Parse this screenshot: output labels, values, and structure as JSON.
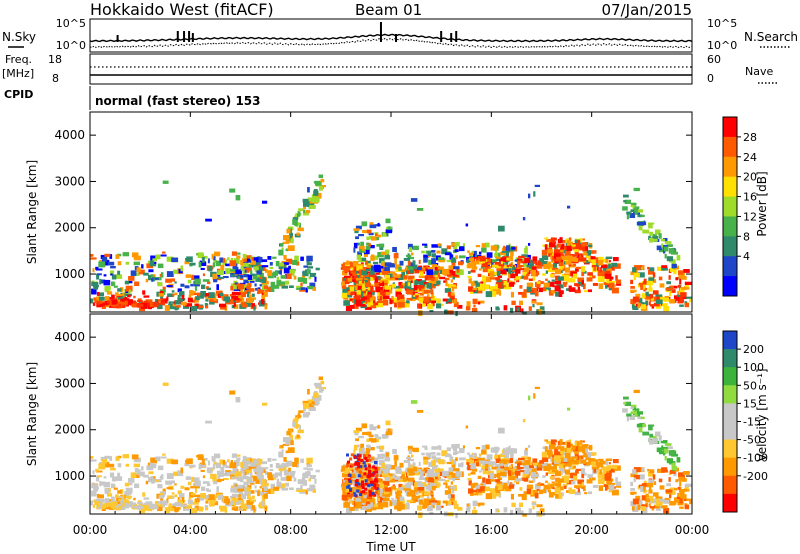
{
  "header": {
    "title": "Hokkaido West (fitACF)",
    "beam": "Beam 01",
    "date": "07/Jan/2015"
  },
  "noise_panel": {
    "left_label": "N.Sky",
    "right_label": "N.Search",
    "tick_top": "10^5",
    "tick_bottom": "10^0"
  },
  "freq_panel": {
    "left_label_1": "Freq.",
    "left_label_2": "[MHz]",
    "left_tick_top": "18",
    "left_tick_bottom": "8",
    "right_label": "Nave",
    "right_tick_top": "60",
    "right_tick_bottom": "0"
  },
  "cpid_panel": {
    "label": "CPID",
    "text": "normal (fast stereo) 153"
  },
  "colors": {
    "power_scale": [
      "#0000ff",
      "#1e46c8",
      "#2f8a6b",
      "#48b24a",
      "#9fdc2a",
      "#ffe000",
      "#ff9900",
      "#ff5a00",
      "#ff0000"
    ],
    "velocity_scale": [
      "#ff0000",
      "#ff5a00",
      "#ff9900",
      "#ffc830",
      "#c8c8c8",
      "#c8c8c8",
      "#90dc40",
      "#3cb43c",
      "#2f8a6b",
      "#1e46c8"
    ]
  },
  "chart_data": [
    {
      "type": "heatmap",
      "name": "power",
      "ylabel": "Slant Range [km]",
      "yticks": [
        "1000",
        "2000",
        "3000",
        "4000"
      ],
      "ylim": [
        180,
        4500
      ],
      "xlim": [
        0,
        24
      ],
      "colorbar_label": "Power [dB]",
      "colorbar_ticks": [
        "4",
        "8",
        "12",
        "16",
        "20",
        "24",
        "28"
      ],
      "colorbar_range": [
        0,
        32
      ]
    },
    {
      "type": "heatmap",
      "name": "velocity",
      "ylabel": "Slant Range [km]",
      "yticks": [
        "1000",
        "2000",
        "3000",
        "4000"
      ],
      "ylim": [
        180,
        4500
      ],
      "xlim": [
        0,
        24
      ],
      "colorbar_label": "Velocity [m s⁻¹]",
      "colorbar_ticks": [
        "200",
        "100",
        "50",
        "15",
        "-15",
        "-50",
        "-100",
        "-200"
      ]
    }
  ],
  "x_axis": {
    "label": "Time UT",
    "ticks": [
      "00:00",
      "04:00",
      "08:00",
      "12:00",
      "16:00",
      "20:00",
      "00:00"
    ]
  }
}
